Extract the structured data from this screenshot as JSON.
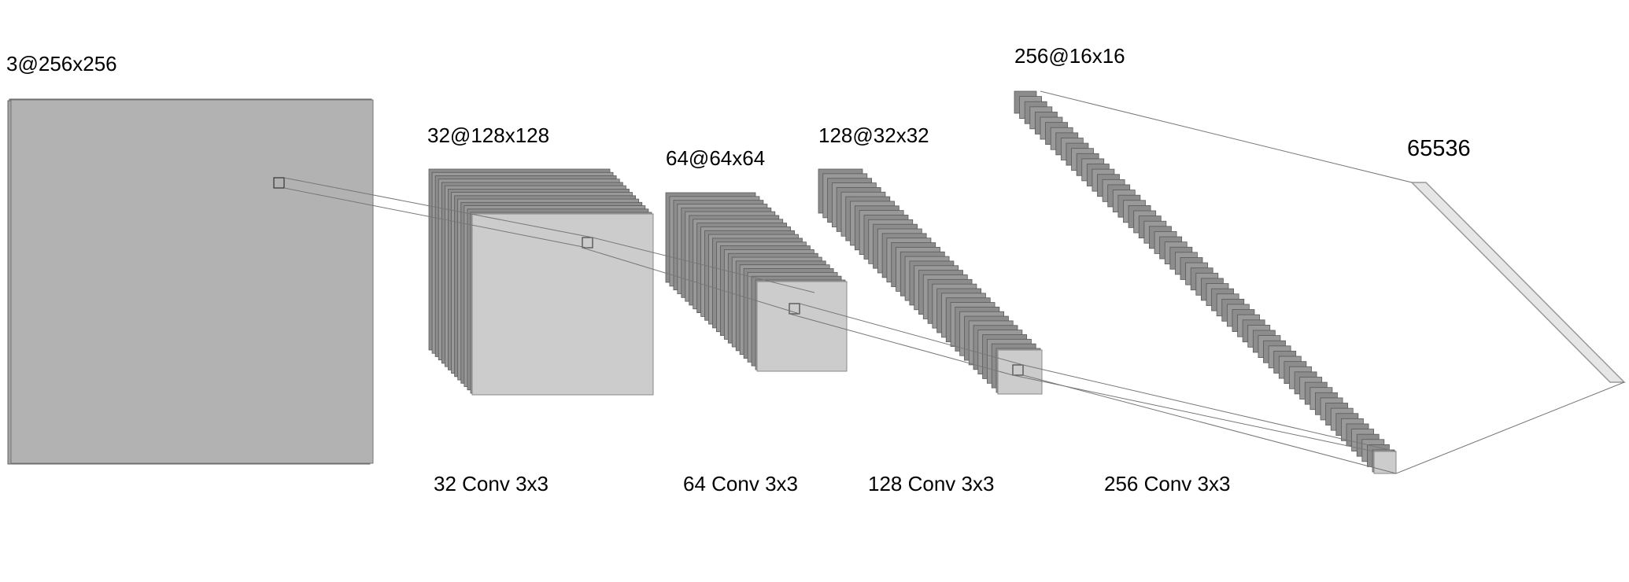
{
  "diagram": {
    "layers": [
      {
        "dims_label": "3@256x256"
      },
      {
        "dims_label": "32@128x128",
        "op_label": "32 Conv 3x3"
      },
      {
        "dims_label": "64@64x64",
        "op_label": "64 Conv 3x3"
      },
      {
        "dims_label": "128@32x32",
        "op_label": "128 Conv 3x3"
      },
      {
        "dims_label": "256@16x16",
        "op_label": "256 Conv 3x3"
      },
      {
        "dims_label": "65536"
      }
    ],
    "colors": {
      "input_face": "#b2b2b2",
      "stack_slice": "#8c8c8c",
      "front_face": "#cccccc",
      "dense_face": "#e6e6e6",
      "edges": "#555555",
      "lines": "#777777"
    }
  }
}
